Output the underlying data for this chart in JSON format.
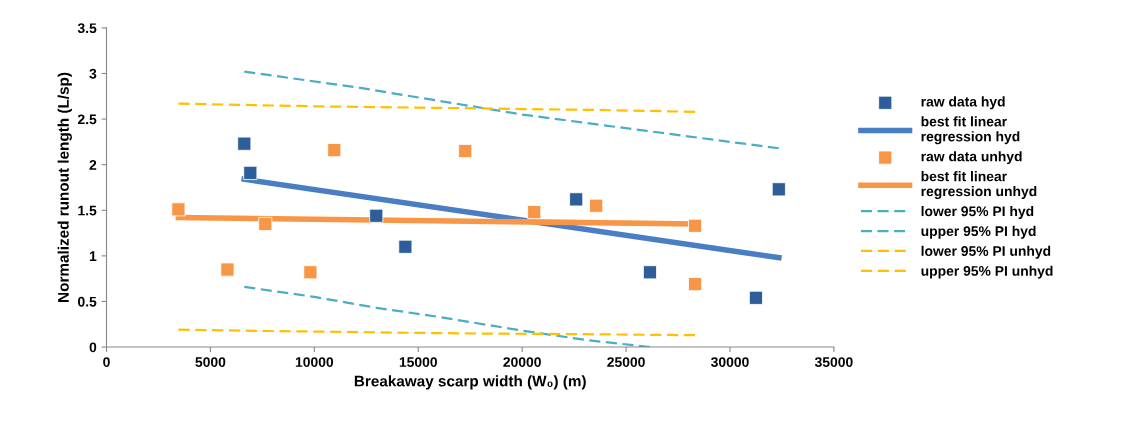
{
  "chart_data": {
    "type": "scatter",
    "xlabel": "Breakaway scarp width (W₀) (m)",
    "ylabel": "Normalized runout length (L/sp)",
    "xlim": [
      0,
      35000
    ],
    "xticks": [
      0,
      5000,
      10000,
      15000,
      20000,
      25000,
      30000,
      35000
    ],
    "ylim": [
      0,
      3.5
    ],
    "yticks": [
      0,
      0.5,
      1,
      1.5,
      2,
      2.5,
      3,
      3.5
    ],
    "grid": false,
    "legend": "right",
    "series": [
      {
        "name": "raw data hyd",
        "type": "scatter",
        "marker": "square",
        "color": "#2e5e9a",
        "x": [
          6630,
          6920,
          12980,
          14380,
          22600,
          26150,
          31250,
          32350
        ],
        "values": [
          2.23,
          1.91,
          1.44,
          1.1,
          1.62,
          0.82,
          0.54,
          1.73
        ]
      },
      {
        "name": "best fit linear regression hyd",
        "type": "line",
        "marker": "none",
        "line_style": "solid",
        "color": "#4a7ec4",
        "x": [
          6630,
          32350
        ],
        "values": [
          1.84,
          0.98
        ]
      },
      {
        "name": "raw data unhyd",
        "type": "scatter",
        "marker": "square",
        "color": "#f79646",
        "x": [
          3460,
          5820,
          7640,
          9810,
          10960,
          17260,
          20580,
          23560,
          28320,
          28320
        ],
        "values": [
          1.51,
          0.85,
          1.35,
          0.82,
          2.16,
          2.15,
          1.48,
          1.55,
          1.33,
          0.69
        ]
      },
      {
        "name": "best fit linear regression unhyd",
        "type": "line",
        "marker": "none",
        "line_style": "solid",
        "color": "#f79646",
        "x": [
          3460,
          28320
        ],
        "values": [
          1.42,
          1.35
        ]
      },
      {
        "name": "lower 95% PI hyd",
        "type": "line",
        "marker": "none",
        "line_style": "dashed",
        "color": "#4bacc6",
        "x": [
          6630,
          10000,
          13000,
          16000,
          20000,
          23000,
          26150
        ],
        "values": [
          0.66,
          0.55,
          0.43,
          0.33,
          0.18,
          0.08,
          0.0
        ]
      },
      {
        "name": "upper 95% PI hyd",
        "type": "line",
        "marker": "none",
        "line_style": "dashed",
        "color": "#4bacc6",
        "x": [
          6630,
          12000,
          20000,
          26000,
          32350
        ],
        "values": [
          3.02,
          2.85,
          2.55,
          2.37,
          2.18
        ]
      },
      {
        "name": "lower 95% PI unhyd",
        "type": "line",
        "marker": "none",
        "line_style": "dashed",
        "color": "#ffc000",
        "x": [
          3460,
          10000,
          17000,
          23500,
          28320
        ],
        "values": [
          0.19,
          0.17,
          0.15,
          0.14,
          0.13
        ]
      },
      {
        "name": "upper 95% PI unhyd",
        "type": "line",
        "marker": "none",
        "line_style": "dashed",
        "color": "#ffc000",
        "x": [
          3460,
          10000,
          17000,
          23500,
          28320
        ],
        "values": [
          2.67,
          2.64,
          2.62,
          2.6,
          2.58
        ]
      }
    ]
  }
}
